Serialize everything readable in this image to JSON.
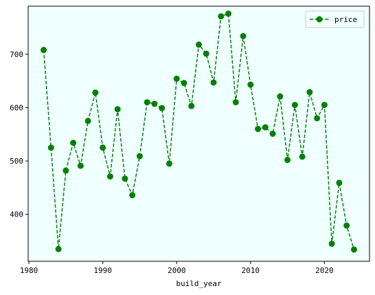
{
  "chart_data": {
    "type": "line",
    "title": "",
    "xlabel": "build_year",
    "ylabel": "",
    "xlim": [
      1979.9,
      2026.1
    ],
    "ylim": [
      312,
      790
    ],
    "xticks": [
      1980,
      1990,
      2000,
      2010,
      2020
    ],
    "yticks": [
      400,
      500,
      600,
      700
    ],
    "grid": false,
    "legend_position": "top-right",
    "colors": {
      "plot_background": "#f0ffff",
      "series": "#008000"
    },
    "series": [
      {
        "name": "price",
        "line_style": "dashed",
        "marker": "circle",
        "x": [
          1982,
          1983,
          1984,
          1985,
          1986,
          1987,
          1988,
          1989,
          1990,
          1991,
          1992,
          1993,
          1994,
          1995,
          1996,
          1997,
          1998,
          1999,
          2000,
          2001,
          2002,
          2003,
          2004,
          2005,
          2006,
          2007,
          2008,
          2009,
          2010,
          2011,
          2012,
          2013,
          2014,
          2015,
          2016,
          2017,
          2018,
          2019,
          2020,
          2021,
          2022,
          2023,
          2024
        ],
        "y": [
          708,
          525,
          335,
          482,
          534,
          491,
          575,
          628,
          525,
          471,
          597,
          467,
          436,
          509,
          610,
          607,
          599,
          495,
          654,
          646,
          603,
          718,
          701,
          647,
          771,
          776,
          610,
          734,
          643,
          560,
          563,
          551,
          621,
          502,
          605,
          508,
          629,
          580,
          605,
          345,
          459,
          379,
          334
        ]
      }
    ]
  }
}
